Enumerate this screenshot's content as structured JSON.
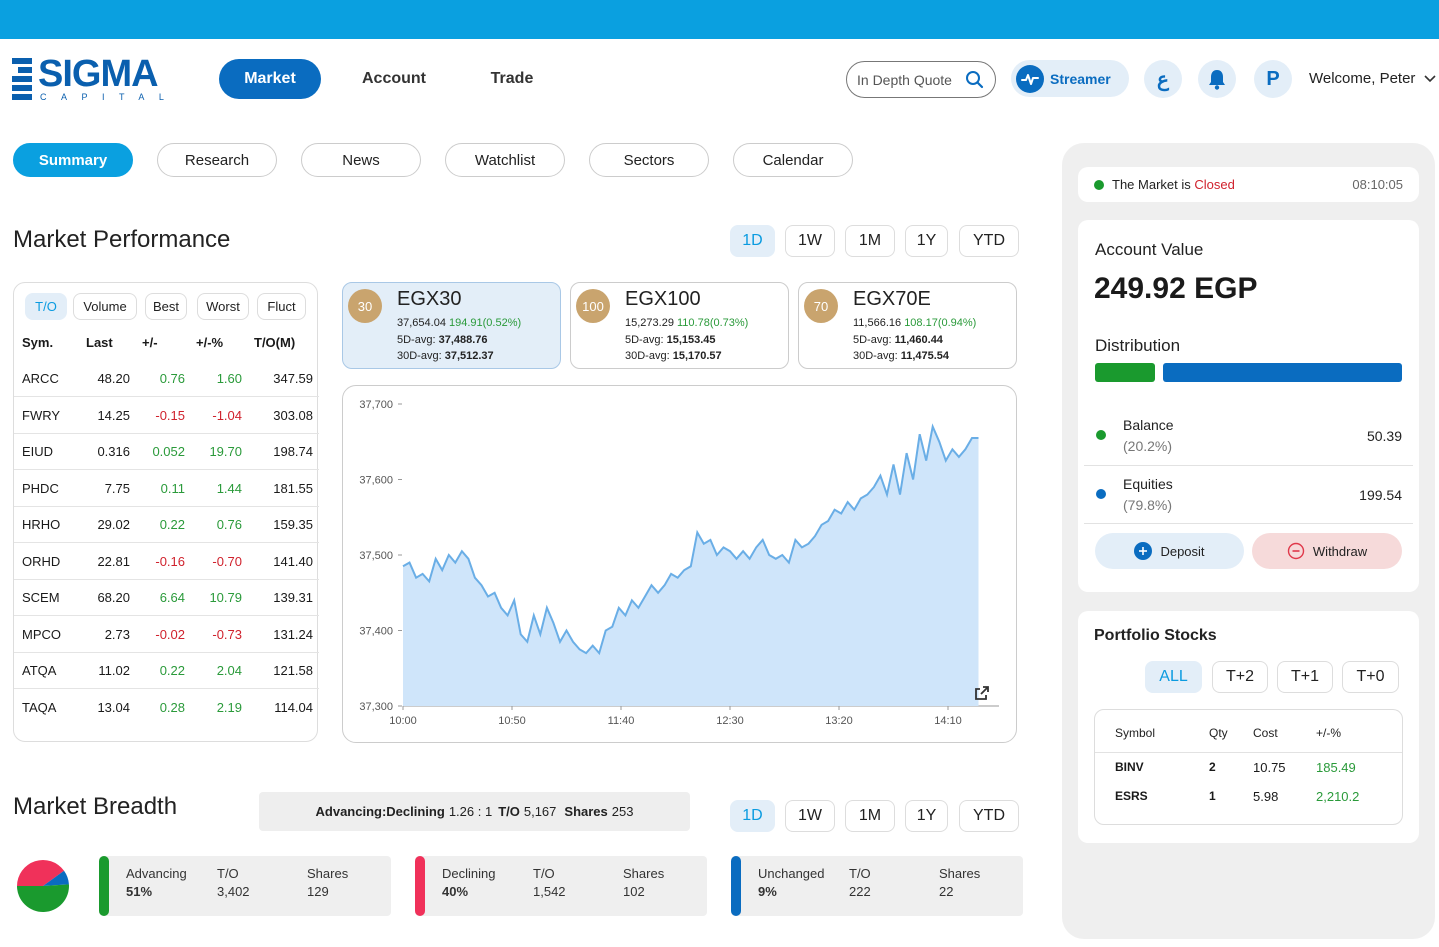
{
  "header": {
    "logo_text": "SIGMA",
    "logo_sub": "CAPITAL",
    "nav": [
      {
        "label": "Market"
      },
      {
        "label": "Account"
      },
      {
        "label": "Trade"
      }
    ],
    "quote_placeholder": "In Depth Quote",
    "streamer_label": "Streamer",
    "lang_label": "ع",
    "avatar_letter": "P",
    "welcome": "Welcome, Peter"
  },
  "tabs": [
    {
      "label": "Summary"
    },
    {
      "label": "Research"
    },
    {
      "label": "News"
    },
    {
      "label": "Watchlist"
    },
    {
      "label": "Sectors"
    },
    {
      "label": "Calendar"
    }
  ],
  "market_performance": {
    "title": "Market Performance",
    "periods": [
      "1D",
      "1W",
      "1M",
      "1Y",
      "YTD"
    ],
    "filters": [
      "T/O",
      "Volume",
      "Best",
      "Worst",
      "Fluct"
    ],
    "columns": [
      "Sym.",
      "Last",
      "+/-",
      "+/-%",
      "T/O(M)"
    ],
    "rows": [
      {
        "sym": "ARCC",
        "last": "48.20",
        "chg": "0.76",
        "pct": "1.60",
        "to": "347.59",
        "dir": "pos"
      },
      {
        "sym": "FWRY",
        "last": "14.25",
        "chg": "-0.15",
        "pct": "-1.04",
        "to": "303.08",
        "dir": "neg"
      },
      {
        "sym": "EIUD",
        "last": "0.316",
        "chg": "0.052",
        "pct": "19.70",
        "to": "198.74",
        "dir": "pos"
      },
      {
        "sym": "PHDC",
        "last": "7.75",
        "chg": "0.11",
        "pct": "1.44",
        "to": "181.55",
        "dir": "pos"
      },
      {
        "sym": "HRHO",
        "last": "29.02",
        "chg": "0.22",
        "pct": "0.76",
        "to": "159.35",
        "dir": "pos"
      },
      {
        "sym": "ORHD",
        "last": "22.81",
        "chg": "-0.16",
        "pct": "-0.70",
        "to": "141.40",
        "dir": "neg"
      },
      {
        "sym": "SCEM",
        "last": "68.20",
        "chg": "6.64",
        "pct": "10.79",
        "to": "139.31",
        "dir": "pos"
      },
      {
        "sym": "MPCO",
        "last": "2.73",
        "chg": "-0.02",
        "pct": "-0.73",
        "to": "131.24",
        "dir": "neg"
      },
      {
        "sym": "ATQA",
        "last": "11.02",
        "chg": "0.22",
        "pct": "2.04",
        "to": "121.58",
        "dir": "pos"
      },
      {
        "sym": "TAQA",
        "last": "13.04",
        "chg": "0.28",
        "pct": "2.19",
        "to": "114.04",
        "dir": "pos"
      }
    ],
    "indices": [
      {
        "badge": "30",
        "name": "EGX30",
        "value": "37,654.04",
        "change": "194.91(0.52%)",
        "d5_label": "5D-avg:",
        "d5": "37,488.76",
        "d30_label": "30D-avg:",
        "d30": "37,512.37"
      },
      {
        "badge": "100",
        "name": "EGX100",
        "value": "15,273.29",
        "change": "110.78(0.73%)",
        "d5_label": "5D-avg:",
        "d5": "15,153.45",
        "d30_label": "30D-avg:",
        "d30": "15,170.57"
      },
      {
        "badge": "70",
        "name": "EGX70E",
        "value": "11,566.16",
        "change": "108.17(0.94%)",
        "d5_label": "5D-avg:",
        "d5": "11,460.44",
        "d30_label": "30D-avg:",
        "d30": "11,475.54"
      }
    ]
  },
  "chart_data": {
    "type": "area",
    "title": "",
    "xlabel": "",
    "ylabel": "",
    "x_ticks": [
      "10:00",
      "10:50",
      "11:40",
      "12:30",
      "13:20",
      "14:10"
    ],
    "y_ticks": [
      "37,300",
      "37,400",
      "37,500",
      "37,600",
      "37,700"
    ],
    "ylim": [
      37300,
      37700
    ],
    "x_minutes_range": [
      "10:00",
      "14:25"
    ],
    "series": [
      {
        "x": [
          "10:00",
          "10:03",
          "10:06",
          "10:09",
          "10:12",
          "10:15",
          "10:18",
          "10:21",
          "10:24",
          "10:27",
          "10:30",
          "10:33",
          "10:36",
          "10:39",
          "10:42",
          "10:45",
          "10:48",
          "10:51",
          "10:54",
          "10:57",
          "11:00",
          "11:03",
          "11:06",
          "11:09",
          "11:12",
          "11:15",
          "11:18",
          "11:21",
          "11:24",
          "11:27",
          "11:30",
          "11:33",
          "11:36",
          "11:39",
          "11:42",
          "11:45",
          "11:48",
          "11:51",
          "11:54",
          "11:57",
          "12:00",
          "12:03",
          "12:06",
          "12:09",
          "12:12",
          "12:15",
          "12:18",
          "12:21",
          "12:24",
          "12:27",
          "12:30",
          "12:33",
          "12:36",
          "12:39",
          "12:42",
          "12:45",
          "12:48",
          "12:51",
          "12:54",
          "12:57",
          "13:00",
          "13:03",
          "13:06",
          "13:09",
          "13:12",
          "13:15",
          "13:18",
          "13:21",
          "13:24",
          "13:27",
          "13:30",
          "13:33",
          "13:36",
          "13:39",
          "13:42",
          "13:45",
          "13:48",
          "13:51",
          "13:54",
          "13:57",
          "14:00",
          "14:03",
          "14:06",
          "14:09",
          "14:12",
          "14:15",
          "14:18",
          "14:21",
          "14:24"
        ],
        "values": [
          37485,
          37490,
          37470,
          37475,
          37465,
          37495,
          37480,
          37500,
          37490,
          37505,
          37495,
          37470,
          37460,
          37445,
          37450,
          37430,
          37420,
          37440,
          37395,
          37385,
          37420,
          37395,
          37430,
          37410,
          37385,
          37400,
          37385,
          37375,
          37370,
          37380,
          37370,
          37400,
          37405,
          37430,
          37420,
          37440,
          37430,
          37445,
          37460,
          37450,
          37460,
          37475,
          37470,
          37480,
          37485,
          37530,
          37515,
          37520,
          37500,
          37510,
          37505,
          37495,
          37505,
          37495,
          37510,
          37520,
          37500,
          37495,
          37500,
          37490,
          37520,
          37510,
          37515,
          37525,
          37540,
          37545,
          37560,
          37555,
          37570,
          37560,
          37575,
          37580,
          37590,
          37605,
          37580,
          37620,
          37580,
          37635,
          37600,
          37660,
          37625,
          37670,
          37650,
          37625,
          37640,
          37630,
          37640,
          37655,
          37655
        ]
      }
    ]
  },
  "market_breadth": {
    "title": "Market Breadth",
    "summary_label": "Advancing:Declining",
    "summary_ratio": "1.26 : 1",
    "to_label": "T/O",
    "to_value": "5,167",
    "shares_label": "Shares",
    "shares_value": "253",
    "periods": [
      "1D",
      "1W",
      "1M",
      "1Y",
      "YTD"
    ],
    "pie": [
      {
        "label": "Advancing",
        "value": 51,
        "color": "#1a9a2e"
      },
      {
        "label": "Declining",
        "value": 40,
        "color": "#f0315a"
      },
      {
        "label": "Unchanged",
        "value": 9,
        "color": "#0a6cc0"
      }
    ],
    "cards": [
      {
        "label": "Advancing",
        "pct": "51%",
        "to_label": "T/O",
        "to": "3,402",
        "shares_label": "Shares",
        "shares": "129",
        "color": "#1a9a2e"
      },
      {
        "label": "Declining",
        "pct": "40%",
        "to_label": "T/O",
        "to": "1,542",
        "shares_label": "Shares",
        "shares": "102",
        "color": "#f0315a"
      },
      {
        "label": "Unchanged",
        "pct": "9%",
        "to_label": "T/O",
        "to": "222",
        "shares_label": "Shares",
        "shares": "22",
        "color": "#0a6cc0"
      }
    ]
  },
  "right_panel": {
    "market_status_prefix": "The Market is",
    "market_status": "Closed",
    "market_time": "08:10:05",
    "account_value_label": "Account Value",
    "account_value": "249.92 EGP",
    "distribution_label": "Distribution",
    "distribution": [
      {
        "label": "Balance",
        "pct": "(20.2%)",
        "value": "50.39",
        "fraction": 0.202,
        "color": "#1a9a2e"
      },
      {
        "label": "Equities",
        "pct": "(79.8%)",
        "value": "199.54",
        "fraction": 0.798,
        "color": "#0a6cc0"
      }
    ],
    "deposit_label": "Deposit",
    "withdraw_label": "Withdraw",
    "portfolio_title": "Portfolio Stocks",
    "portfolio_filters": [
      "ALL",
      "T+2",
      "T+1",
      "T+0"
    ],
    "portfolio_columns": [
      "Symbol",
      "Qty",
      "Cost",
      "+/-%"
    ],
    "portfolio_rows": [
      {
        "symbol": "BINV",
        "qty": "2",
        "cost": "10.75",
        "pct": "185.49"
      },
      {
        "symbol": "ESRS",
        "qty": "1",
        "cost": "5.98",
        "pct": "2,210.2"
      }
    ]
  }
}
